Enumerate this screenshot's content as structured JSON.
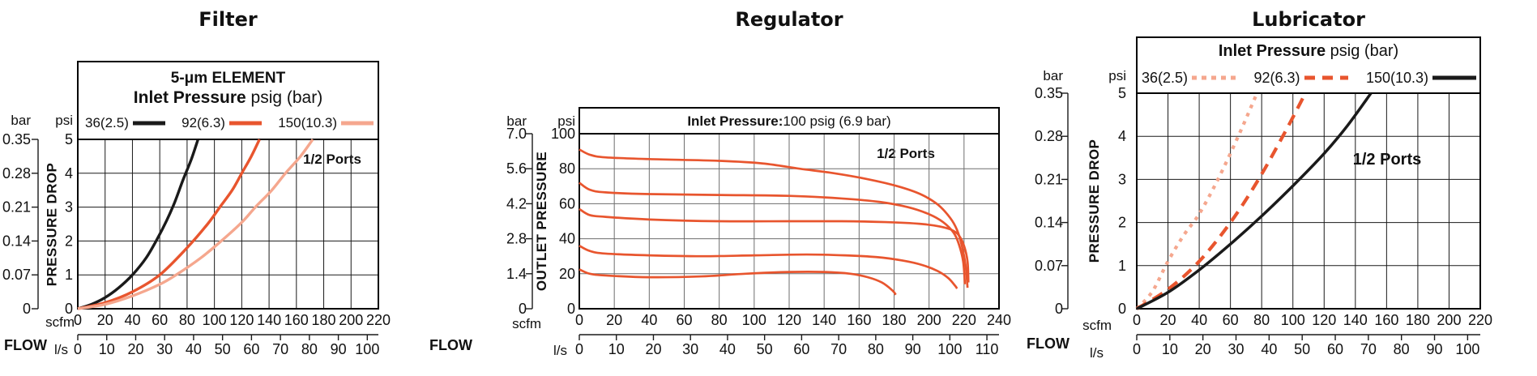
{
  "chart_data": [
    {
      "type": "line",
      "title": "Filter",
      "annotation": "1/2 Ports",
      "legend": {
        "position": "top-box",
        "line1": "5-μm ELEMENT",
        "header_bold": "Inlet Pressure",
        "header_rest": " psig (bar)",
        "entries": [
          {
            "label": "36(2.5)"
          },
          {
            "label": "92(6.3)"
          },
          {
            "label": "150(10.3)"
          }
        ]
      },
      "y_axis": {
        "label": "PRESSURE DROP",
        "left_unit": "bar",
        "left_ticks": [
          "0.35",
          "0.28",
          "0.21",
          "0.14",
          "0.07",
          "0"
        ],
        "right_unit": "psi",
        "right_ticks": [
          "5",
          "4",
          "3",
          "2",
          "1",
          "0"
        ],
        "range_psi": [
          0,
          5
        ]
      },
      "x_axis": {
        "label": "FLOW",
        "top_unit": "scfm",
        "top_ticks": [
          0,
          20,
          40,
          60,
          80,
          100,
          120,
          140,
          160,
          180,
          200,
          220
        ],
        "bottom_unit": "l/s",
        "bottom_ticks": [
          0,
          10,
          20,
          30,
          40,
          50,
          60,
          70,
          80,
          90,
          100
        ],
        "range_scfm": [
          0,
          220
        ],
        "ls_to_scfm": 2.1189
      },
      "grid": true,
      "series": [
        {
          "name": "36(2.5)",
          "color": "#1a1a1a",
          "dash": "solid",
          "points": [
            [
              0,
              0
            ],
            [
              10,
              0.13
            ],
            [
              20,
              0.33
            ],
            [
              30,
              0.62
            ],
            [
              40,
              1.0
            ],
            [
              50,
              1.5
            ],
            [
              58,
              2.05
            ],
            [
              65,
              2.6
            ],
            [
              71,
              3.15
            ],
            [
              77,
              3.8
            ],
            [
              83,
              4.4
            ],
            [
              88,
              5.0
            ]
          ]
        },
        {
          "name": "92(6.3)",
          "color": "#e8552e",
          "dash": "solid",
          "points": [
            [
              0,
              0
            ],
            [
              20,
              0.18
            ],
            [
              40,
              0.5
            ],
            [
              60,
              1.0
            ],
            [
              80,
              1.8
            ],
            [
              95,
              2.5
            ],
            [
              104,
              3.0
            ],
            [
              113,
              3.5
            ],
            [
              120,
              4.0
            ],
            [
              127,
              4.5
            ],
            [
              133,
              5.0
            ]
          ]
        },
        {
          "name": "150(10.3)",
          "color": "#f5a78e",
          "dash": "solid",
          "points": [
            [
              0,
              0
            ],
            [
              20,
              0.13
            ],
            [
              40,
              0.38
            ],
            [
              60,
              0.72
            ],
            [
              72,
              1.0
            ],
            [
              90,
              1.5
            ],
            [
              105,
              2.0
            ],
            [
              120,
              2.55
            ],
            [
              130,
              3.0
            ],
            [
              142,
              3.5
            ],
            [
              152,
              4.0
            ],
            [
              163,
              4.5
            ],
            [
              172,
              5.0
            ]
          ]
        }
      ]
    },
    {
      "type": "line",
      "title": "Regulator",
      "annotation": "1/2 Ports",
      "banner_bold": "Inlet Pressure:",
      "banner_rest": " 100 psig (6.9 bar)",
      "y_axis": {
        "label": "OUTLET PRESSURE",
        "left_unit": "bar",
        "left_ticks": [
          "7.0",
          "5.6",
          "4.2",
          "2.8",
          "1.4",
          "0"
        ],
        "right_unit": "psi",
        "right_ticks": [
          "100",
          "80",
          "60",
          "40",
          "20",
          "0"
        ],
        "range_psi": [
          0,
          100
        ]
      },
      "x_axis": {
        "label": "FLOW",
        "top_unit": "scfm",
        "top_ticks": [
          0,
          20,
          40,
          60,
          80,
          100,
          120,
          140,
          160,
          180,
          200,
          220,
          240
        ],
        "bottom_unit": "l/s",
        "bottom_ticks": [
          0,
          10,
          20,
          30,
          40,
          50,
          60,
          70,
          80,
          90,
          100,
          110
        ],
        "range_scfm": [
          0,
          240
        ],
        "ls_to_scfm": 2.1189
      },
      "grid": true,
      "series": [
        {
          "color": "#e8552e",
          "dash": "solid",
          "points": [
            [
              0,
              91
            ],
            [
              6,
              88
            ],
            [
              15,
              86.5
            ],
            [
              40,
              85.5
            ],
            [
              80,
              84.5
            ],
            [
              105,
              83
            ],
            [
              126,
              80
            ],
            [
              145,
              77.5
            ],
            [
              165,
              74
            ],
            [
              182,
              70
            ],
            [
              195,
              65.5
            ],
            [
              205,
              59.5
            ],
            [
              212,
              52
            ],
            [
              216,
              45
            ],
            [
              219,
              35
            ],
            [
              221,
              24
            ],
            [
              222,
              12
            ]
          ]
        },
        {
          "color": "#e8552e",
          "dash": "solid",
          "points": [
            [
              0,
              72
            ],
            [
              6,
              68
            ],
            [
              15,
              66.5
            ],
            [
              40,
              65.5
            ],
            [
              80,
              65
            ],
            [
              120,
              64.5
            ],
            [
              150,
              63
            ],
            [
              172,
              61
            ],
            [
              188,
              58
            ],
            [
              200,
              54
            ],
            [
              208,
              49.5
            ],
            [
              214,
              43.5
            ],
            [
              217,
              37
            ],
            [
              219.5,
              27
            ],
            [
              220.5,
              14
            ]
          ]
        },
        {
          "color": "#e8552e",
          "dash": "solid",
          "points": [
            [
              0,
              57
            ],
            [
              6,
              53.5
            ],
            [
              15,
              52.5
            ],
            [
              40,
              51
            ],
            [
              80,
              50
            ],
            [
              120,
              50
            ],
            [
              150,
              50
            ],
            [
              175,
              49.5
            ],
            [
              195,
              48.5
            ],
            [
              206,
              47
            ],
            [
              213,
              45
            ],
            [
              217,
              42
            ],
            [
              220,
              36
            ],
            [
              222,
              27
            ],
            [
              222.5,
              15
            ]
          ]
        },
        {
          "color": "#e8552e",
          "dash": "solid",
          "points": [
            [
              0,
              36
            ],
            [
              6,
              33
            ],
            [
              15,
              31.5
            ],
            [
              40,
              30.5
            ],
            [
              70,
              30
            ],
            [
              100,
              30.5
            ],
            [
              130,
              31
            ],
            [
              152,
              30.5
            ],
            [
              170,
              29.5
            ],
            [
              185,
              27.5
            ],
            [
              196,
              25
            ],
            [
              205,
              21.5
            ],
            [
              211,
              17.5
            ],
            [
              215,
              13
            ],
            [
              216,
              11.5
            ]
          ]
        },
        {
          "color": "#e8552e",
          "dash": "solid",
          "points": [
            [
              0,
              22.5
            ],
            [
              6,
              20
            ],
            [
              15,
              19
            ],
            [
              40,
              18
            ],
            [
              70,
              18.5
            ],
            [
              95,
              20
            ],
            [
              120,
              21
            ],
            [
              140,
              21
            ],
            [
              155,
              20
            ],
            [
              165,
              18
            ],
            [
              173,
              15
            ],
            [
              179,
              10.5
            ],
            [
              181,
              8
            ]
          ]
        }
      ]
    },
    {
      "type": "line",
      "title": "Lubricator",
      "annotation": "1/2 Ports",
      "legend": {
        "position": "top-box",
        "header_bold": "Inlet Pressure",
        "header_rest": " psig (bar)",
        "entries": [
          {
            "label": "36(2.5)"
          },
          {
            "label": "92(6.3)"
          },
          {
            "label": "150(10.3)"
          }
        ]
      },
      "y_axis": {
        "label": "PRESSURE DROP",
        "left_unit": "bar",
        "left_ticks": [
          "0.35",
          "0.28",
          "0.21",
          "0.14",
          "0.07",
          "0"
        ],
        "right_unit": "psi",
        "right_ticks": [
          "5",
          "4",
          "3",
          "2",
          "1",
          "0"
        ],
        "range_psi": [
          0,
          5
        ]
      },
      "x_axis": {
        "label": "FLOW",
        "top_unit": "scfm",
        "top_ticks": [
          0,
          20,
          40,
          60,
          80,
          100,
          120,
          140,
          160,
          180,
          200,
          220
        ],
        "bottom_unit": "l/s",
        "bottom_ticks": [
          0,
          10,
          20,
          30,
          40,
          50,
          60,
          70,
          80,
          90,
          100
        ],
        "range_scfm": [
          0,
          220
        ],
        "ls_to_scfm": 2.1189
      },
      "grid": true,
      "series": [
        {
          "name": "36(2.5)",
          "color": "#f5a78e",
          "dash": "dotted",
          "points": [
            [
              0,
              0
            ],
            [
              10,
              0.4
            ],
            [
              20,
              1.1
            ],
            [
              30,
              1.7
            ],
            [
              40,
              2.2
            ],
            [
              52,
              3.0
            ],
            [
              65,
              4.0
            ],
            [
              77,
              5.0
            ]
          ]
        },
        {
          "name": "92(6.3)",
          "color": "#e8552e",
          "dash": "dashed",
          "points": [
            [
              0,
              0
            ],
            [
              20,
              0.45
            ],
            [
              40,
              1.1
            ],
            [
              60,
              2.0
            ],
            [
              78,
              3.0
            ],
            [
              95,
              4.1
            ],
            [
              108,
              5.0
            ]
          ]
        },
        {
          "name": "150(10.3)",
          "color": "#1a1a1a",
          "dash": "solid",
          "points": [
            [
              0,
              0
            ],
            [
              20,
              0.38
            ],
            [
              40,
              0.9
            ],
            [
              60,
              1.5
            ],
            [
              80,
              2.15
            ],
            [
              100,
              2.85
            ],
            [
              120,
              3.6
            ],
            [
              135,
              4.25
            ],
            [
              150,
              5.0
            ]
          ]
        }
      ]
    }
  ]
}
